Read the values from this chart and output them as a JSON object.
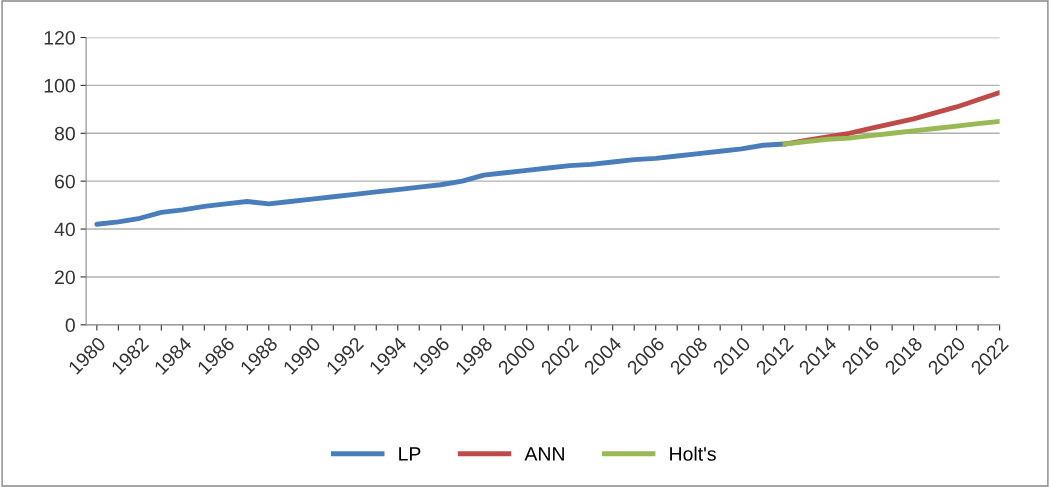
{
  "chart_data": {
    "type": "line",
    "categories": [
      "1980",
      null,
      "1982",
      null,
      "1984",
      null,
      "1986",
      null,
      "1988",
      null,
      "1990",
      null,
      "1992",
      null,
      "1994",
      null,
      "1996",
      null,
      "1998",
      null,
      "2000",
      null,
      "2002",
      null,
      "2004",
      null,
      "2006",
      null,
      "2008",
      null,
      "2010",
      null,
      "2012",
      null,
      "2014",
      null,
      "2016",
      null,
      "2018",
      null,
      "2020",
      null,
      "2022"
    ],
    "series": [
      {
        "name": "LP",
        "color": "#4a7ebb",
        "values": [
          42,
          43,
          44.5,
          47,
          48,
          49.5,
          50.5,
          51.5,
          50.5,
          51.5,
          52.5,
          53.5,
          54.5,
          55.5,
          56.5,
          57.5,
          58.5,
          60,
          62.5,
          63.5,
          64.5,
          65.5,
          66.5,
          67,
          68,
          69,
          69.5,
          70.5,
          71.5,
          72.5,
          73.5,
          75,
          75.5,
          null,
          null,
          null,
          null,
          null,
          null,
          null,
          null,
          null,
          null
        ]
      },
      {
        "name": "ANN",
        "color": "#be4b48",
        "values": [
          null,
          null,
          null,
          null,
          null,
          null,
          null,
          null,
          null,
          null,
          null,
          null,
          null,
          null,
          null,
          null,
          null,
          null,
          null,
          null,
          null,
          null,
          null,
          null,
          null,
          null,
          null,
          null,
          null,
          null,
          null,
          null,
          75.5,
          77,
          78.5,
          80,
          82,
          84,
          86,
          88.5,
          91,
          94,
          97
        ]
      },
      {
        "name": "Holt's",
        "color": "#98b954",
        "values": [
          null,
          null,
          null,
          null,
          null,
          null,
          null,
          null,
          null,
          null,
          null,
          null,
          null,
          null,
          null,
          null,
          null,
          null,
          null,
          null,
          null,
          null,
          null,
          null,
          null,
          null,
          null,
          null,
          null,
          null,
          null,
          null,
          75.5,
          76.5,
          77.5,
          78,
          79,
          80,
          81,
          82,
          83,
          84,
          85
        ]
      }
    ],
    "ylim": [
      0,
      120
    ],
    "yticks": [
      0,
      20,
      40,
      60,
      80,
      100,
      120
    ],
    "grid": "y",
    "legend": "bottom",
    "marker": "none",
    "line_style": "solid"
  }
}
